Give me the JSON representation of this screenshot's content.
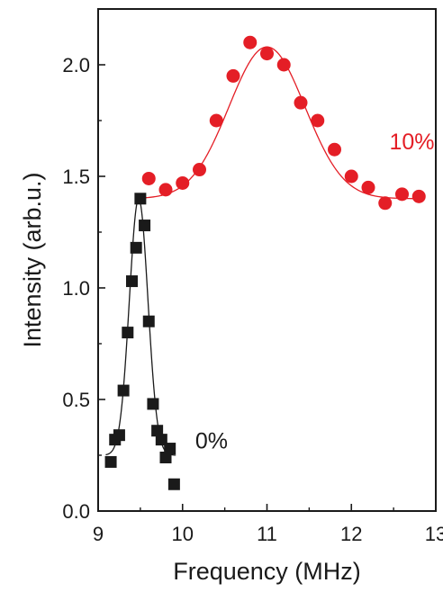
{
  "chart_data": {
    "type": "scatter",
    "title": "",
    "xlabel": "Frequency (MHz)",
    "ylabel": "Intensity (arb.u.)",
    "xlim": [
      9,
      13
    ],
    "ylim": [
      0,
      2.25
    ],
    "xticks": [
      9,
      10,
      11,
      12,
      13
    ],
    "xtick_labels": [
      "9",
      "10",
      "11",
      "12",
      "13"
    ],
    "yticks": [
      0,
      0.5,
      1.0,
      1.5,
      2.0
    ],
    "ytick_labels": [
      "0.0",
      "0.5",
      "1.0",
      "1.5",
      "2.0"
    ],
    "grid": false,
    "legend": "none",
    "series": [
      {
        "name": "0%",
        "marker": "square",
        "color": "#1a1a1a",
        "label_pos": [
          10.15,
          0.28
        ],
        "x": [
          9.15,
          9.2,
          9.25,
          9.3,
          9.35,
          9.4,
          9.45,
          9.5,
          9.55,
          9.6,
          9.65,
          9.7,
          9.75,
          9.8,
          9.85,
          9.9
        ],
        "y": [
          0.22,
          0.32,
          0.34,
          0.54,
          0.8,
          1.03,
          1.18,
          1.4,
          1.28,
          0.85,
          0.48,
          0.36,
          0.32,
          0.24,
          0.28,
          0.12
        ],
        "fit": {
          "type": "gaussian",
          "baseline": 0.25,
          "amplitude": 1.15,
          "center": 9.48,
          "sigma": 0.11
        }
      },
      {
        "name": "10%",
        "marker": "circle",
        "color": "#e41e26",
        "label_pos": [
          12.45,
          1.62
        ],
        "x": [
          9.6,
          9.8,
          10.0,
          10.2,
          10.4,
          10.6,
          10.8,
          11.0,
          11.2,
          11.4,
          11.6,
          11.8,
          12.0,
          12.2,
          12.4,
          12.6,
          12.8
        ],
        "y": [
          1.49,
          1.44,
          1.47,
          1.53,
          1.75,
          1.95,
          2.1,
          2.05,
          2.0,
          1.83,
          1.75,
          1.62,
          1.5,
          1.45,
          1.38,
          1.42,
          1.41
        ],
        "fit": {
          "type": "gaussian",
          "baseline": 1.4,
          "amplitude": 0.68,
          "center": 11.0,
          "sigma": 0.45,
          "x_from": 9.55
        }
      }
    ]
  }
}
